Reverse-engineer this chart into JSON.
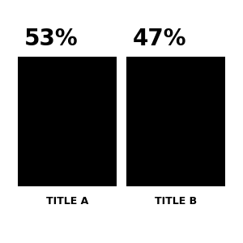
{
  "bars": [
    {
      "label": "53%",
      "title": "TITLE A",
      "value": 53,
      "color": "#000000"
    },
    {
      "label": "47%",
      "title": "TITLE B",
      "value": 47,
      "color": "#000000"
    }
  ],
  "background_color": "#ffffff",
  "bar_color": "#000000",
  "pct_fontsize": 20,
  "title_fontsize": 9,
  "pct_color": "#000000",
  "title_color": "#000000",
  "figsize": [
    3.0,
    3.0
  ],
  "dpi": 100
}
